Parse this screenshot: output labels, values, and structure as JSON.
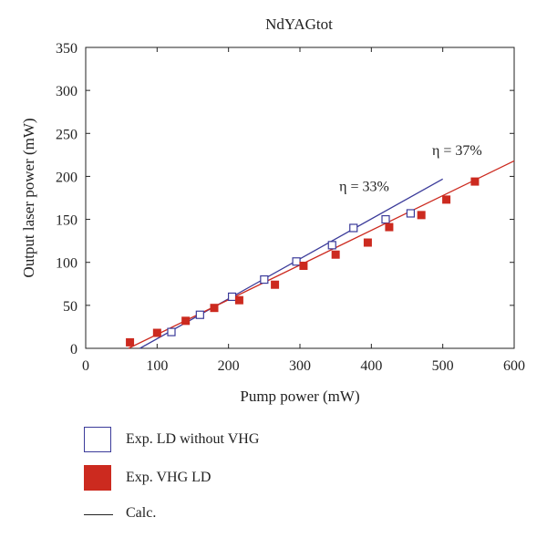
{
  "chart_data": {
    "type": "scatter",
    "title": "NdYAGtot",
    "xlabel": "Pump power (mW)",
    "ylabel": "Output laser power (mW)",
    "xlim": [
      0,
      600
    ],
    "ylim": [
      0,
      350
    ],
    "xticks": [
      0,
      100,
      200,
      300,
      400,
      500,
      600
    ],
    "yticks": [
      0,
      50,
      100,
      150,
      200,
      250,
      300,
      350
    ],
    "series": [
      {
        "name": "Exp. LD without VHG",
        "marker": "open-square",
        "color": "#3b3b9a",
        "x": [
          120,
          160,
          205,
          250,
          295,
          345,
          375,
          420,
          455
        ],
        "y": [
          19,
          39,
          60,
          80,
          101,
          120,
          140,
          150,
          157
        ]
      },
      {
        "name": "Exp. VHG LD",
        "marker": "filled-square",
        "color": "#cc2a1f",
        "x": [
          62,
          100,
          140,
          180,
          215,
          265,
          305,
          350,
          395,
          425,
          470,
          505,
          545
        ],
        "y": [
          7,
          18,
          32,
          47,
          56,
          74,
          96,
          109,
          123,
          141,
          155,
          173,
          194
        ]
      }
    ],
    "fits": [
      {
        "name": "Calc.",
        "color": "#3b3b9a",
        "x": [
          76,
          500
        ],
        "y": [
          0,
          197
        ],
        "annotation": "η = 33%",
        "annotation_at": [
          390,
          183
        ]
      },
      {
        "name": "Calc.",
        "color": "#cc2a1f",
        "x": [
          60,
          600
        ],
        "y": [
          0,
          218
        ],
        "annotation": "η = 37%",
        "annotation_at": [
          520,
          225
        ]
      }
    ],
    "legend": [
      {
        "label": "Exp. LD without VHG",
        "marker": "open-square"
      },
      {
        "label": "Exp. VHG LD",
        "marker": "filled-square"
      },
      {
        "label": "Calc.",
        "marker": "line"
      }
    ],
    "legend_position": "below"
  }
}
